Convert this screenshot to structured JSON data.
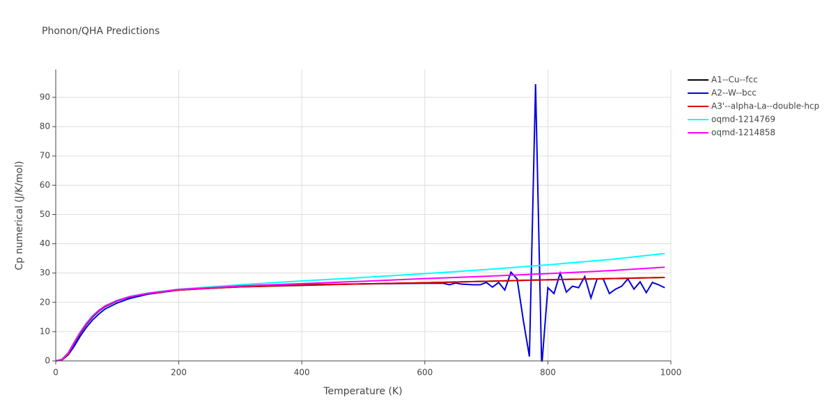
{
  "chart_data": {
    "type": "line",
    "title": "Phonon/QHA Predictions",
    "x_label": "Temperature (K)",
    "y_label": "Cp numerical (J/K/mol)",
    "xlim": [
      0,
      1000
    ],
    "ylim": [
      0,
      99.5
    ],
    "xticks": [
      0,
      200,
      400,
      600,
      800,
      1000
    ],
    "yticks": [
      0,
      10,
      20,
      30,
      40,
      50,
      60,
      70,
      80,
      90
    ],
    "grid": true,
    "legend": "right",
    "series": [
      {
        "name": "A1--Cu--fcc",
        "color": "#000000",
        "x": [
          0,
          10,
          20,
          30,
          40,
          50,
          60,
          70,
          80,
          100,
          120,
          150,
          200,
          250,
          300,
          400,
          500,
          600,
          700,
          800,
          900,
          990
        ],
        "values": [
          0,
          0.5,
          2.5,
          6,
          9.5,
          12.5,
          15,
          17,
          18.5,
          20.5,
          21.8,
          23,
          24.2,
          24.8,
          25.3,
          25.8,
          26.3,
          26.7,
          27.2,
          27.7,
          28.1,
          28.5
        ]
      },
      {
        "name": "A2--W--bcc",
        "color": "#0000dd",
        "x": [
          0,
          10,
          20,
          30,
          40,
          50,
          60,
          70,
          80,
          100,
          120,
          150,
          200,
          300,
          400,
          500,
          600,
          630,
          640,
          650,
          660,
          680,
          690,
          700,
          710,
          720,
          730,
          740,
          750,
          760,
          770,
          780,
          790,
          800,
          810,
          820,
          830,
          840,
          850,
          860,
          870,
          880,
          890,
          900,
          910,
          920,
          930,
          940,
          950,
          960,
          970,
          980,
          990
        ],
        "values": [
          0,
          0.3,
          2,
          5,
          8.5,
          11.5,
          14,
          16,
          17.7,
          19.8,
          21.3,
          22.8,
          24.2,
          25.5,
          26,
          26.3,
          26.5,
          26.5,
          26,
          26.6,
          26.2,
          26,
          26,
          26.8,
          25.2,
          26.8,
          24.2,
          30.3,
          28,
          14,
          1.5,
          94.5,
          -2,
          25,
          23,
          30,
          23.5,
          25.5,
          25,
          28.8,
          21.5,
          28,
          28,
          23,
          24.5,
          25.5,
          28,
          24.5,
          27,
          23.3,
          26.8,
          26,
          25
        ]
      },
      {
        "name": "A3'--alpha-La--double-hcp",
        "color": "#dd0000",
        "x": [
          0,
          10,
          20,
          30,
          40,
          50,
          60,
          70,
          80,
          100,
          120,
          150,
          200,
          250,
          300,
          400,
          500,
          600,
          700,
          800,
          900,
          990
        ],
        "values": [
          0,
          0.4,
          2.2,
          6.2,
          9.8,
          12.9,
          15.4,
          17.3,
          18.8,
          20.7,
          21.9,
          23,
          24.2,
          24.8,
          25.3,
          25.9,
          26.3,
          26.7,
          27.2,
          27.7,
          28.1,
          28.5
        ]
      },
      {
        "name": "oqmd-1214769",
        "color": "#00ffff",
        "x": [
          0,
          10,
          20,
          30,
          40,
          50,
          60,
          70,
          80,
          100,
          120,
          150,
          200,
          300,
          400,
          500,
          600,
          700,
          800,
          900,
          990
        ],
        "values": [
          0,
          0.6,
          2.8,
          6.5,
          10,
          13,
          15.5,
          17.3,
          18.8,
          20.7,
          22,
          23.2,
          24.5,
          26,
          27.3,
          28.5,
          29.8,
          31.2,
          32.8,
          34.6,
          36.7
        ]
      },
      {
        "name": "oqmd-1214858",
        "color": "#ff00ff",
        "x": [
          0,
          10,
          20,
          30,
          40,
          50,
          60,
          70,
          80,
          100,
          120,
          150,
          200,
          300,
          400,
          500,
          600,
          700,
          800,
          900,
          990
        ],
        "values": [
          0,
          0.5,
          2.6,
          6.3,
          9.8,
          12.8,
          15.3,
          17.2,
          18.7,
          20.6,
          21.9,
          23.1,
          24.4,
          25.6,
          26.4,
          27.2,
          28.1,
          28.9,
          29.8,
          30.8,
          32
        ]
      }
    ]
  }
}
